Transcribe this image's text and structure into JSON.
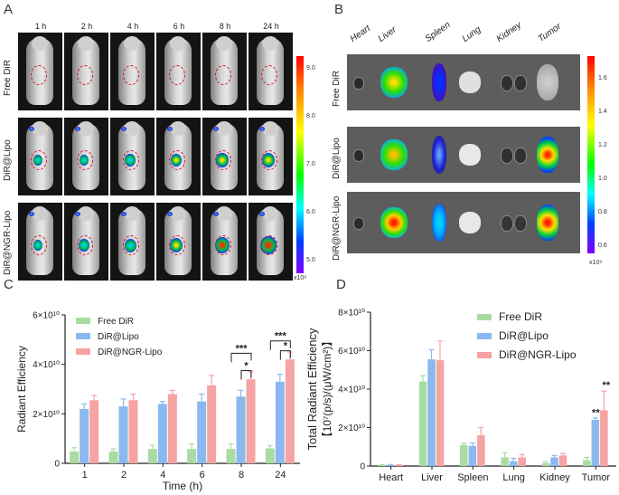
{
  "panels": {
    "a": "A",
    "b": "B",
    "c": "C",
    "d": "D"
  },
  "panel_a": {
    "time_labels": [
      "1 h",
      "2 h",
      "4 h",
      "6 h",
      "8 h",
      "24 h"
    ],
    "row_labels": [
      "Free DiR",
      "DiR@Lipo",
      "DiR@NGR-Lipo"
    ],
    "colorbar_ticks": [
      "9.0",
      "8.0",
      "7.0",
      "6.0",
      "5.0"
    ],
    "colorbar_unit": "x10⁸"
  },
  "panel_b": {
    "organ_labels": [
      "Heart",
      "Liver",
      "Spleen",
      "Lung",
      "Kidney",
      "Tumor"
    ],
    "row_labels": [
      "Free DiR",
      "DiR@Lipo",
      "DiR@NGR-Lipo"
    ],
    "colorbar_ticks": [
      "1.6",
      "1.4",
      "1.2",
      "1.0",
      "0.8",
      "0.6"
    ],
    "colorbar_unit": "x10⁹"
  },
  "chart_data": [
    {
      "type": "bar",
      "title": "",
      "xlabel": "Time (h)",
      "ylabel": "Radiant Efficiency",
      "ylim": [
        0,
        60000000000
      ],
      "yticks": [
        "0",
        "2×10¹⁰",
        "4×10¹⁰",
        "6×10¹⁰"
      ],
      "categories": [
        "1",
        "2",
        "4",
        "6",
        "8",
        "24"
      ],
      "series": [
        {
          "name": "Free DiR",
          "color": "#a9dca2",
          "values": [
            4800000000.0,
            4800000000.0,
            5800000000.0,
            5800000000.0,
            5800000000.0,
            6000000000.0
          ],
          "errors": [
            1500000000.0,
            1000000000.0,
            1500000000.0,
            2000000000.0,
            2000000000.0,
            1200000000.0
          ]
        },
        {
          "name": "DiR@Lipo",
          "color": "#8ab8ef",
          "values": [
            22000000000.0,
            23000000000.0,
            24000000000.0,
            25000000000.0,
            27000000000.0,
            33000000000.0
          ],
          "errors": [
            2000000000.0,
            3000000000.0,
            1000000000.0,
            3000000000.0,
            2500000000.0,
            3000000000.0
          ]
        },
        {
          "name": "DiR@NGR-Lipo",
          "color": "#f5a3a3",
          "values": [
            25500000000.0,
            25500000000.0,
            28000000000.0,
            31500000000.0,
            34000000000.0,
            42000000000.0
          ],
          "errors": [
            2000000000.0,
            2500000000.0,
            1500000000.0,
            4000000000.0,
            3000000000.0,
            3000000000.0
          ]
        }
      ],
      "annotations": [
        "***",
        "*",
        "***",
        "*"
      ]
    },
    {
      "type": "bar",
      "title": "",
      "xlabel": "",
      "ylabel": "Total Radiant Efficiency",
      "ylabel_unit": "【10⁷(p/s)/(μW/cm²)】",
      "ylim": [
        0,
        80000000000
      ],
      "yticks": [
        "0",
        "2×10¹⁰",
        "4×10¹⁰",
        "6×10¹⁰",
        "8×10¹⁰"
      ],
      "categories": [
        "Heart",
        "Liver",
        "Spleen",
        "Lung",
        "Kidney",
        "Tumor"
      ],
      "series": [
        {
          "name": "Free DiR",
          "color": "#a9dca2",
          "values": [
            400000000.0,
            44000000000.0,
            11000000000.0,
            4500000000.0,
            1500000000.0,
            3000000000.0
          ],
          "errors": [
            300000000.0,
            3000000000.0,
            1000000000.0,
            2500000000.0,
            800000000.0,
            1500000000.0
          ]
        },
        {
          "name": "DiR@Lipo",
          "color": "#8ab8ef",
          "values": [
            500000000.0,
            55500000000.0,
            10500000000.0,
            2500000000.0,
            4500000000.0,
            24000000000.0
          ],
          "errors": [
            300000000.0,
            5000000000.0,
            1500000000.0,
            1500000000.0,
            1000000000.0,
            1000000000.0
          ]
        },
        {
          "name": "DiR@NGR-Lipo",
          "color": "#f5a3a3",
          "values": [
            400000000.0,
            55000000000.0,
            16000000000.0,
            4500000000.0,
            5500000000.0,
            29000000000.0
          ],
          "errors": [
            300000000.0,
            10000000000.0,
            4000000000.0,
            1500000000.0,
            1000000000.0,
            10000000000.0
          ]
        }
      ],
      "annotations": [
        "**",
        "**"
      ]
    }
  ]
}
